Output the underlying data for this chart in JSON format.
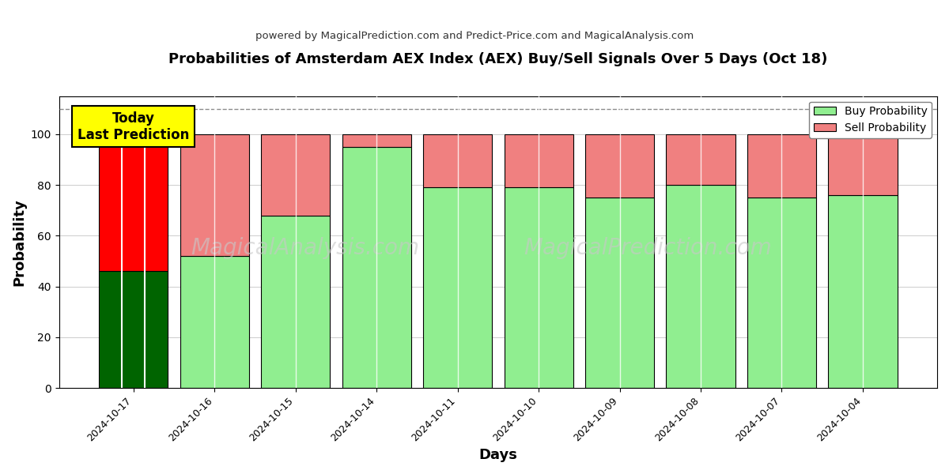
{
  "title": "Probabilities of Amsterdam AEX Index (AEX) Buy/Sell Signals Over 5 Days (Oct 18)",
  "subtitle": "powered by MagicalPrediction.com and Predict-Price.com and MagicalAnalysis.com",
  "xlabel": "Days",
  "ylabel": "Probability",
  "dates": [
    "2024-10-17",
    "2024-10-16",
    "2024-10-15",
    "2024-10-14",
    "2024-10-11",
    "2024-10-10",
    "2024-10-09",
    "2024-10-08",
    "2024-10-07",
    "2024-10-04"
  ],
  "buy_values": [
    46,
    52,
    68,
    95,
    79,
    79,
    75,
    80,
    75,
    76
  ],
  "sell_values": [
    54,
    48,
    32,
    5,
    21,
    21,
    25,
    20,
    25,
    24
  ],
  "buy_colors": [
    "#006400",
    "#90EE90",
    "#90EE90",
    "#90EE90",
    "#90EE90",
    "#90EE90",
    "#90EE90",
    "#90EE90",
    "#90EE90",
    "#90EE90"
  ],
  "sell_colors": [
    "#FF0000",
    "#F08080",
    "#F08080",
    "#F08080",
    "#F08080",
    "#F08080",
    "#F08080",
    "#F08080",
    "#F08080",
    "#F08080"
  ],
  "legend_buy_color": "#90EE90",
  "legend_sell_color": "#F08080",
  "today_box_color": "#FFFF00",
  "today_box_text": "Today\nLast Prediction",
  "dashed_line_y": 110,
  "ylim": [
    0,
    115
  ],
  "yticks": [
    0,
    20,
    40,
    60,
    80,
    100
  ],
  "grid_color": "#aaaaaa",
  "bar_edge_color": "black",
  "bar_linewidth": 0.8,
  "bar_width": 0.85,
  "first_bar_sub_count": 3
}
